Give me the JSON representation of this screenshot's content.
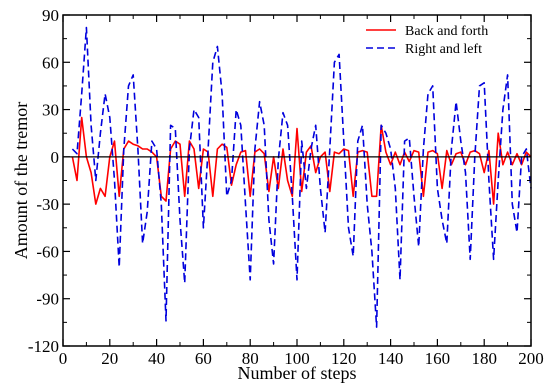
{
  "chart_data": {
    "type": "line",
    "xlabel": "Number of steps",
    "ylabel": "Amount of the tremor",
    "xlim": [
      0,
      200
    ],
    "ylim": [
      -120,
      90
    ],
    "xticks": [
      0,
      20,
      40,
      60,
      80,
      100,
      120,
      140,
      160,
      180,
      200
    ],
    "yticks": [
      -120,
      -90,
      -60,
      -30,
      0,
      30,
      60,
      90
    ],
    "xtick_labels": [
      "0",
      "20",
      "40",
      "60",
      "80",
      "100",
      "120",
      "140",
      "160",
      "180",
      "200"
    ],
    "ytick_labels": [
      "-120",
      "-90",
      "-60",
      "-30",
      "0",
      "30",
      "60",
      "90"
    ],
    "grid": false,
    "zero_line": true,
    "legend_position": "top-right",
    "series": [
      {
        "name": "Back and forth",
        "color": "#ff0000",
        "dash": "solid",
        "x": [
          4,
          6,
          8,
          10,
          12,
          14,
          16,
          18,
          20,
          22,
          24,
          26,
          28,
          30,
          32,
          34,
          36,
          38,
          40,
          42,
          44,
          46,
          48,
          50,
          52,
          54,
          56,
          58,
          60,
          62,
          64,
          66,
          68,
          70,
          72,
          74,
          76,
          78,
          80,
          82,
          84,
          86,
          88,
          90,
          92,
          94,
          96,
          98,
          100,
          102,
          104,
          106,
          108,
          110,
          112,
          114,
          116,
          118,
          120,
          122,
          124,
          126,
          128,
          130,
          132,
          134,
          136,
          138,
          140,
          142,
          144,
          146,
          148,
          150,
          152,
          154,
          156,
          158,
          160,
          162,
          164,
          166,
          168,
          170,
          172,
          174,
          176,
          178,
          180,
          182,
          184,
          186,
          188,
          190,
          192,
          194,
          196,
          198,
          200
        ],
        "y": [
          0,
          -15,
          25,
          0,
          -10,
          -30,
          -20,
          -25,
          0,
          10,
          -25,
          5,
          10,
          8,
          7,
          5,
          5,
          3,
          0,
          -25,
          -28,
          5,
          10,
          8,
          -25,
          10,
          5,
          -20,
          5,
          3,
          -25,
          5,
          8,
          6,
          -18,
          -5,
          3,
          4,
          -25,
          3,
          5,
          2,
          -22,
          0,
          -20,
          5,
          -15,
          -25,
          18,
          -22,
          3,
          7,
          -10,
          0,
          3,
          -22,
          3,
          2,
          5,
          4,
          -25,
          3,
          4,
          3,
          -25,
          -25,
          20,
          3,
          -5,
          3,
          -5,
          3,
          -3,
          4,
          3,
          -25,
          3,
          4,
          2,
          -20,
          4,
          -5,
          2,
          3,
          -5,
          3,
          4,
          2,
          -10,
          4,
          -30,
          15,
          -5,
          3,
          -5,
          2,
          -5,
          3,
          0
        ]
      },
      {
        "name": "Right and left",
        "color": "#0000dd",
        "dash": "dashed",
        "x": [
          4,
          6,
          8,
          10,
          12,
          14,
          16,
          18,
          20,
          22,
          24,
          26,
          28,
          30,
          32,
          34,
          36,
          38,
          40,
          42,
          44,
          46,
          48,
          50,
          52,
          54,
          56,
          58,
          60,
          62,
          64,
          66,
          68,
          70,
          72,
          74,
          76,
          78,
          80,
          82,
          84,
          86,
          88,
          90,
          92,
          94,
          96,
          98,
          100,
          102,
          104,
          106,
          108,
          110,
          112,
          114,
          116,
          118,
          120,
          122,
          124,
          126,
          128,
          130,
          132,
          134,
          136,
          138,
          140,
          142,
          144,
          146,
          148,
          150,
          152,
          154,
          156,
          158,
          160,
          162,
          164,
          166,
          168,
          170,
          172,
          174,
          176,
          178,
          180,
          182,
          184,
          186,
          188,
          190,
          192,
          194,
          196,
          198,
          200
        ],
        "y": [
          5,
          2,
          40,
          82,
          20,
          -15,
          15,
          40,
          25,
          -15,
          -70,
          5,
          45,
          52,
          5,
          -55,
          -35,
          10,
          5,
          -30,
          -104,
          20,
          18,
          -40,
          -80,
          5,
          30,
          25,
          -45,
          5,
          60,
          70,
          40,
          -25,
          -15,
          30,
          20,
          -30,
          -78,
          5,
          35,
          20,
          -40,
          -68,
          -2,
          28,
          20,
          -25,
          -78,
          10,
          -20,
          5,
          20,
          -20,
          -48,
          5,
          60,
          65,
          10,
          -45,
          -63,
          10,
          20,
          -30,
          -60,
          -108,
          20,
          15,
          5,
          -20,
          -78,
          10,
          12,
          -25,
          -57,
          5,
          40,
          45,
          -20,
          -40,
          -55,
          5,
          35,
          10,
          -10,
          -65,
          0,
          45,
          47,
          -15,
          -65,
          -15,
          30,
          52,
          -30,
          -48,
          0,
          5,
          -20
        ]
      }
    ]
  }
}
